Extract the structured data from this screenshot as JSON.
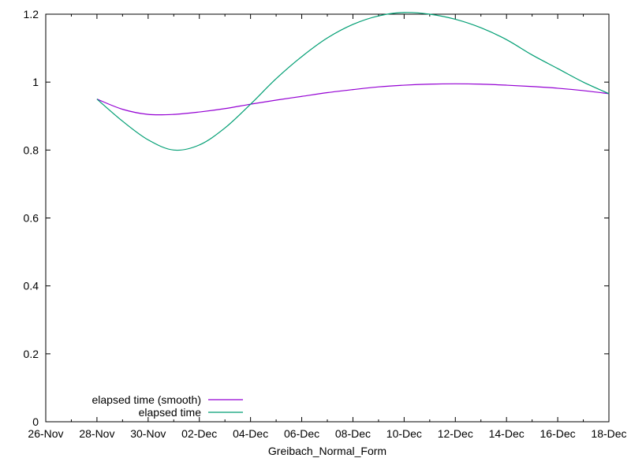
{
  "chart_data": {
    "type": "line",
    "title": "",
    "xlabel": "Greibach_Normal_Form",
    "ylabel": "",
    "x_ticks": [
      "26-Nov",
      "28-Nov",
      "30-Nov",
      "02-Dec",
      "04-Dec",
      "06-Dec",
      "08-Dec",
      "10-Dec",
      "12-Dec",
      "14-Dec",
      "16-Dec",
      "18-Dec"
    ],
    "y_ticks": [
      "0",
      "0.2",
      "0.4",
      "0.6",
      "0.8",
      "1",
      "1.2"
    ],
    "xlim": [
      "2025-11-26",
      "2025-12-18"
    ],
    "ylim": [
      0,
      1.2
    ],
    "grid": false,
    "legend_position": "bottom-left",
    "series": [
      {
        "name": "elapsed time (smooth)",
        "color": "#9400d3",
        "points": [
          [
            "2025-11-28",
            0.95
          ],
          [
            "2025-11-29",
            0.92
          ],
          [
            "2025-11-30",
            0.905
          ],
          [
            "2025-12-01",
            0.905
          ],
          [
            "2025-12-02",
            0.912
          ],
          [
            "2025-12-03",
            0.922
          ],
          [
            "2025-12-04",
            0.935
          ],
          [
            "2025-12-05",
            0.947
          ],
          [
            "2025-12-06",
            0.958
          ],
          [
            "2025-12-07",
            0.969
          ],
          [
            "2025-12-08",
            0.978
          ],
          [
            "2025-12-09",
            0.986
          ],
          [
            "2025-12-10",
            0.991
          ],
          [
            "2025-12-11",
            0.994
          ],
          [
            "2025-12-12",
            0.995
          ],
          [
            "2025-12-13",
            0.994
          ],
          [
            "2025-12-14",
            0.991
          ],
          [
            "2025-12-15",
            0.987
          ],
          [
            "2025-12-16",
            0.982
          ],
          [
            "2025-12-17",
            0.975
          ],
          [
            "2025-12-18",
            0.966
          ]
        ]
      },
      {
        "name": "elapsed time",
        "color": "#009e73",
        "points": [
          [
            "2025-11-28",
            0.95
          ],
          [
            "2025-11-29",
            0.885
          ],
          [
            "2025-11-30",
            0.83
          ],
          [
            "2025-12-01",
            0.8
          ],
          [
            "2025-12-02",
            0.815
          ],
          [
            "2025-12-03",
            0.865
          ],
          [
            "2025-12-04",
            0.935
          ],
          [
            "2025-12-05",
            1.01
          ],
          [
            "2025-12-06",
            1.075
          ],
          [
            "2025-12-07",
            1.13
          ],
          [
            "2025-12-08",
            1.17
          ],
          [
            "2025-12-09",
            1.195
          ],
          [
            "2025-12-10",
            1.205
          ],
          [
            "2025-12-11",
            1.2
          ],
          [
            "2025-12-12",
            1.185
          ],
          [
            "2025-12-13",
            1.16
          ],
          [
            "2025-12-14",
            1.125
          ],
          [
            "2025-12-15",
            1.08
          ],
          [
            "2025-12-16",
            1.04
          ],
          [
            "2025-12-17",
            1.0
          ],
          [
            "2025-12-18",
            0.966
          ]
        ]
      }
    ]
  }
}
